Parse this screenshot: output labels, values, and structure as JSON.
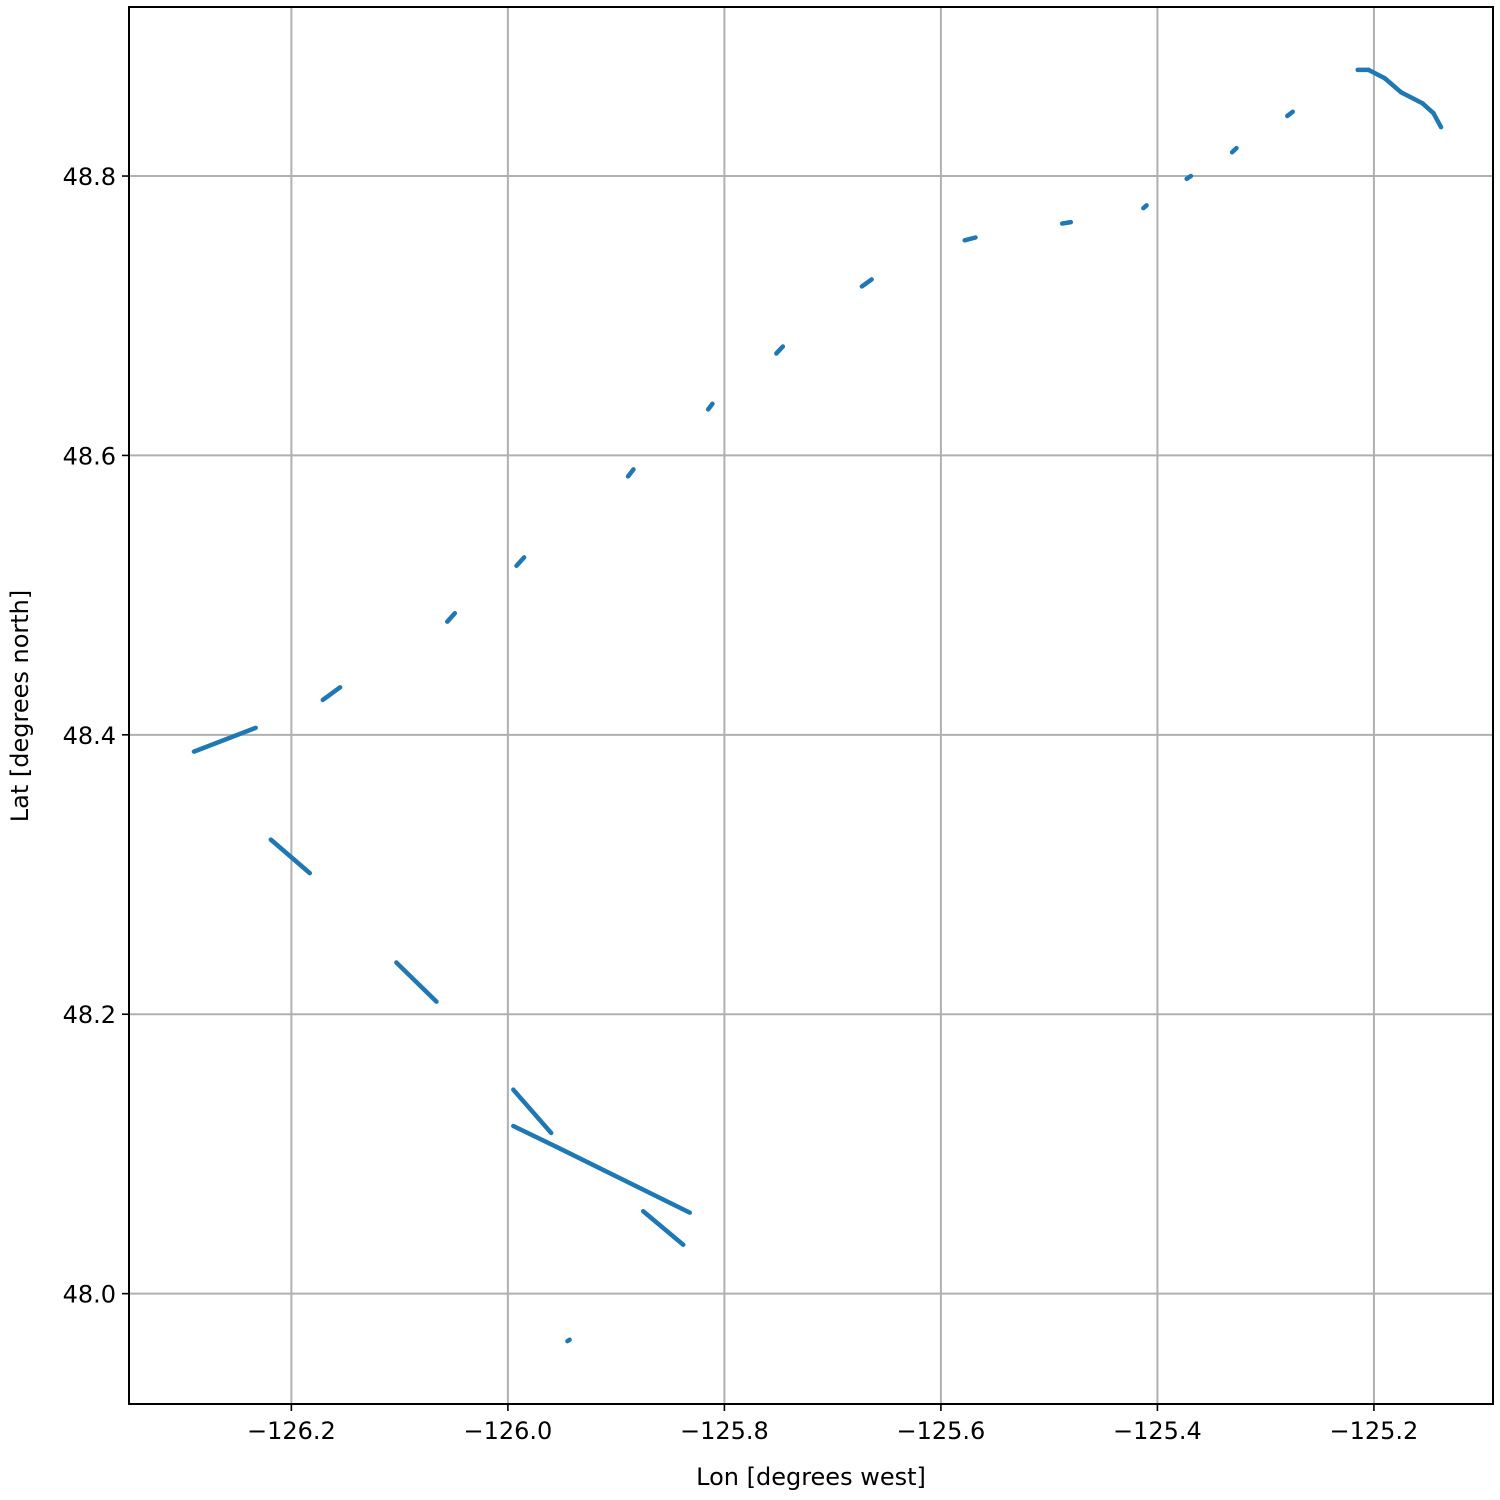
{
  "chart_data": {
    "type": "scatter",
    "title": "",
    "xlabel": "Lon [degrees west]",
    "ylabel": "Lat [degrees north]",
    "xlim": [
      -126.35,
      -125.09
    ],
    "ylim": [
      47.921,
      48.921
    ],
    "xticks": [
      -126.2,
      -126.0,
      -125.8,
      -125.6,
      -125.4,
      -125.2
    ],
    "xtick_labels": [
      "−126.2",
      "−126.0",
      "−125.8",
      "−125.6",
      "−125.4",
      "−125.2"
    ],
    "yticks": [
      48.0,
      48.2,
      48.4,
      48.6,
      48.8
    ],
    "ytick_labels": [
      "48.0",
      "48.2",
      "48.4",
      "48.6",
      "48.8"
    ],
    "grid": true,
    "color": "#1f77b4",
    "segments": [
      {
        "name": "",
        "start": [
          -125.215,
          48.876
        ],
        "end": [
          -125.205,
          48.876
        ]
      },
      {
        "name": "",
        "start": [
          -125.205,
          48.876
        ],
        "end": [
          -125.19,
          48.87
        ]
      },
      {
        "name": "",
        "start": [
          -125.19,
          48.87
        ],
        "end": [
          -125.175,
          48.86
        ]
      },
      {
        "name": "",
        "start": [
          -125.175,
          48.86
        ],
        "end": [
          -125.155,
          48.852
        ]
      },
      {
        "name": "",
        "start": [
          -125.155,
          48.852
        ],
        "end": [
          -125.145,
          48.845
        ]
      },
      {
        "name": "",
        "start": [
          -125.145,
          48.845
        ],
        "end": [
          -125.138,
          48.835
        ]
      },
      {
        "name": "",
        "start": [
          -125.28,
          48.843
        ],
        "end": [
          -125.275,
          48.846
        ]
      },
      {
        "name": "",
        "start": [
          -125.331,
          48.817
        ],
        "end": [
          -125.327,
          48.82
        ]
      },
      {
        "name": "",
        "start": [
          -125.373,
          48.798
        ],
        "end": [
          -125.369,
          48.8
        ]
      },
      {
        "name": "",
        "start": [
          -125.413,
          48.777
        ],
        "end": [
          -125.41,
          48.779
        ]
      },
      {
        "name": "",
        "start": [
          -125.488,
          48.766
        ],
        "end": [
          -125.48,
          48.767
        ]
      },
      {
        "name": "",
        "start": [
          -125.578,
          48.754
        ],
        "end": [
          -125.568,
          48.756
        ]
      },
      {
        "name": "",
        "start": [
          -125.673,
          48.721
        ],
        "end": [
          -125.664,
          48.726
        ]
      },
      {
        "name": "",
        "start": [
          -125.752,
          48.673
        ],
        "end": [
          -125.746,
          48.678
        ]
      },
      {
        "name": "",
        "start": [
          -125.815,
          48.633
        ],
        "end": [
          -125.811,
          48.637
        ]
      },
      {
        "name": "",
        "start": [
          -125.889,
          48.585
        ],
        "end": [
          -125.884,
          48.59
        ]
      },
      {
        "name": "",
        "start": [
          -125.992,
          48.521
        ],
        "end": [
          -125.985,
          48.527
        ]
      },
      {
        "name": "",
        "start": [
          -126.056,
          48.481
        ],
        "end": [
          -126.049,
          48.487
        ]
      },
      {
        "name": "",
        "start": [
          -126.171,
          48.425
        ],
        "end": [
          -126.155,
          48.434
        ]
      },
      {
        "name": "",
        "start": [
          -126.29,
          48.388
        ],
        "end": [
          -126.233,
          48.405
        ]
      },
      {
        "name": "",
        "start": [
          -126.219,
          48.325
        ],
        "end": [
          -126.183,
          48.301
        ]
      },
      {
        "name": "",
        "start": [
          -126.103,
          48.237
        ],
        "end": [
          -126.066,
          48.209
        ]
      },
      {
        "name": "",
        "start": [
          -125.995,
          48.146
        ],
        "end": [
          -125.96,
          48.115
        ]
      },
      {
        "name": "",
        "start": [
          -125.995,
          48.12
        ],
        "end": [
          -125.955,
          48.105
        ]
      },
      {
        "name": "",
        "start": [
          -125.955,
          48.105
        ],
        "end": [
          -125.832,
          48.058
        ]
      },
      {
        "name": "",
        "start": [
          -125.875,
          48.059
        ],
        "end": [
          -125.838,
          48.035
        ]
      },
      {
        "name": "",
        "start": [
          -125.945,
          47.966
        ],
        "end": [
          -125.943,
          47.967
        ]
      }
    ]
  }
}
